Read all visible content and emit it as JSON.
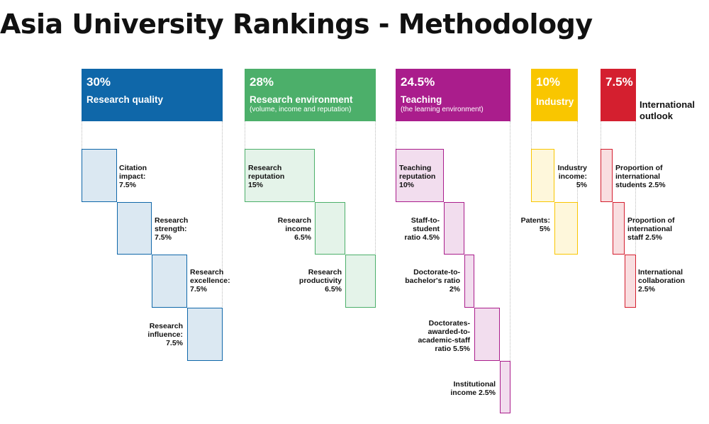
{
  "title": "Asia University Rankings - Methodology",
  "pillars": [
    {
      "pct": "30%",
      "name": "Research quality",
      "sub": "",
      "color": "#0F67A9",
      "items": [
        {
          "lines": [
            "Citation",
            "impact:",
            "7.5%"
          ]
        },
        {
          "lines": [
            "Research",
            "strength:",
            "7.5%"
          ]
        },
        {
          "lines": [
            "Research",
            "excellence:",
            "7.5%"
          ]
        },
        {
          "lines": [
            "Research",
            "influence:",
            "7.5%"
          ]
        }
      ]
    },
    {
      "pct": "28%",
      "name": "Research environment",
      "sub": "(volume, income and reputation)",
      "color": "#4CAF6A",
      "items": [
        {
          "lines": [
            "Research",
            "reputation",
            "15%"
          ]
        },
        {
          "lines": [
            "Research",
            "income",
            "6.5%"
          ]
        },
        {
          "lines": [
            "Research",
            "productivity",
            "6.5%"
          ]
        }
      ]
    },
    {
      "pct": "24.5%",
      "name": "Teaching",
      "sub": "(the learning environment)",
      "color": "#AA1D8C",
      "items": [
        {
          "lines": [
            "Teaching",
            "reputation",
            "10%"
          ]
        },
        {
          "lines": [
            "Staff-to-",
            "student",
            "ratio 4.5%"
          ]
        },
        {
          "lines": [
            "Doctorate-to-",
            "bachelor's ratio",
            "2%"
          ]
        },
        {
          "lines": [
            "Doctorates-",
            "awarded-to-",
            "academic-staff",
            "ratio 5.5%"
          ]
        },
        {
          "lines": [
            "Institutional",
            "income 2.5%"
          ]
        }
      ]
    },
    {
      "pct": "10%",
      "name": "Industry",
      "sub": "",
      "color": "#F9C600",
      "items": [
        {
          "lines": [
            "Industry",
            "income:",
            "5%"
          ]
        },
        {
          "lines": [
            "Patents:",
            "5%"
          ]
        }
      ]
    },
    {
      "pct": "7.5%",
      "name": "",
      "sub": "",
      "side_label": [
        "International",
        "outlook"
      ],
      "color": "#D41F2F",
      "items": [
        {
          "lines": [
            "Proportion of",
            "international",
            "students 2.5%"
          ]
        },
        {
          "lines": [
            "Proportion of",
            "international",
            "staff 2.5%"
          ]
        },
        {
          "lines": [
            "International",
            "collaboration",
            "2.5%"
          ]
        }
      ]
    }
  ]
}
